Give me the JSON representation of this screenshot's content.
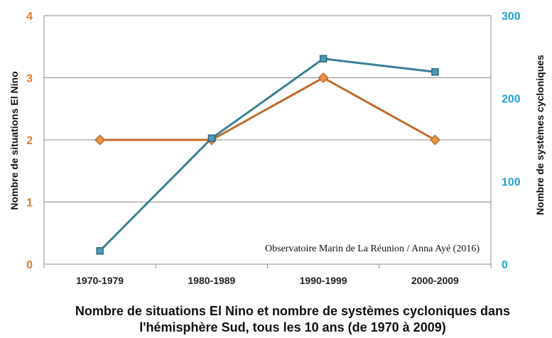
{
  "chart_data": {
    "type": "line",
    "categories": [
      "1970-1979",
      "1980-1989",
      "1990-1999",
      "2000-2009"
    ],
    "series": [
      {
        "axis": "left",
        "color": "#c0692a",
        "marker": "diamond",
        "values": [
          2,
          2,
          3,
          2
        ]
      },
      {
        "axis": "right",
        "color": "#3a7f96",
        "marker": "square",
        "values": [
          16,
          152,
          248,
          232
        ]
      }
    ],
    "ylabel_left": "Nombre de situations El Nino",
    "ylabel_right": "Nombre de systèmes cycloniques",
    "ylim_left": [
      0,
      4
    ],
    "yticks_left": [
      "0",
      "1",
      "2",
      "3",
      "4"
    ],
    "ylim_right": [
      0,
      300
    ],
    "yticks_right": [
      "0",
      "100",
      "200",
      "300"
    ],
    "grid": true,
    "colors": {
      "left_axis": "#e07b2b",
      "right_axis": "#1fa3d6"
    },
    "annotation": "Observatoire Marin de La Réunion / Anna Ayé (2016)",
    "title_lines": [
      "Nombre de situations El Nino et nombre de systèmes cycloniques dans",
      "l'hémisphère Sud, tous les 10 ans (de 1970 à 2009)"
    ]
  }
}
